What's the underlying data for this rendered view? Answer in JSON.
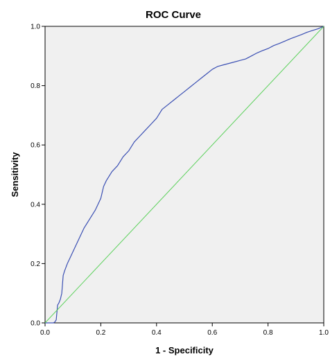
{
  "chart_data": {
    "type": "line",
    "title": "ROC Curve",
    "xlabel": "1 - Specificity",
    "ylabel": "Sensitivity",
    "xlim": [
      0.0,
      1.0
    ],
    "ylim": [
      0.0,
      1.0
    ],
    "x_ticks": [
      "0.0",
      "0.2",
      "0.4",
      "0.6",
      "0.8",
      "1.0"
    ],
    "y_ticks": [
      "0.0",
      "0.2",
      "0.4",
      "0.6",
      "0.8",
      "1.0"
    ],
    "grid": false,
    "plot_background": "#f0f0f0",
    "series": [
      {
        "color": "#3a4fb3",
        "points": [
          [
            0.0,
            0.0
          ],
          [
            0.01,
            0.0
          ],
          [
            0.02,
            0.0
          ],
          [
            0.03,
            0.0
          ],
          [
            0.035,
            0.003
          ],
          [
            0.04,
            0.01
          ],
          [
            0.045,
            0.06
          ],
          [
            0.05,
            0.068
          ],
          [
            0.055,
            0.08
          ],
          [
            0.06,
            0.1
          ],
          [
            0.065,
            0.16
          ],
          [
            0.07,
            0.175
          ],
          [
            0.08,
            0.2
          ],
          [
            0.09,
            0.22
          ],
          [
            0.1,
            0.24
          ],
          [
            0.12,
            0.28
          ],
          [
            0.14,
            0.32
          ],
          [
            0.16,
            0.35
          ],
          [
            0.18,
            0.38
          ],
          [
            0.2,
            0.42
          ],
          [
            0.21,
            0.46
          ],
          [
            0.22,
            0.48
          ],
          [
            0.24,
            0.51
          ],
          [
            0.26,
            0.53
          ],
          [
            0.28,
            0.56
          ],
          [
            0.3,
            0.58
          ],
          [
            0.32,
            0.61
          ],
          [
            0.34,
            0.63
          ],
          [
            0.36,
            0.65
          ],
          [
            0.38,
            0.67
          ],
          [
            0.4,
            0.69
          ],
          [
            0.42,
            0.72
          ],
          [
            0.44,
            0.735
          ],
          [
            0.46,
            0.75
          ],
          [
            0.48,
            0.765
          ],
          [
            0.5,
            0.78
          ],
          [
            0.52,
            0.795
          ],
          [
            0.54,
            0.81
          ],
          [
            0.56,
            0.825
          ],
          [
            0.58,
            0.84
          ],
          [
            0.6,
            0.855
          ],
          [
            0.62,
            0.865
          ],
          [
            0.64,
            0.87
          ],
          [
            0.66,
            0.875
          ],
          [
            0.68,
            0.88
          ],
          [
            0.7,
            0.885
          ],
          [
            0.72,
            0.89
          ],
          [
            0.74,
            0.9
          ],
          [
            0.76,
            0.91
          ],
          [
            0.78,
            0.918
          ],
          [
            0.8,
            0.925
          ],
          [
            0.82,
            0.935
          ],
          [
            0.84,
            0.942
          ],
          [
            0.86,
            0.95
          ],
          [
            0.88,
            0.958
          ],
          [
            0.9,
            0.965
          ],
          [
            0.92,
            0.972
          ],
          [
            0.94,
            0.98
          ],
          [
            0.96,
            0.986
          ],
          [
            0.98,
            0.992
          ],
          [
            1.0,
            1.0
          ]
        ]
      },
      {
        "color": "#5cd15c",
        "points": [
          [
            0.0,
            0.0
          ],
          [
            1.0,
            1.0
          ]
        ]
      }
    ]
  }
}
